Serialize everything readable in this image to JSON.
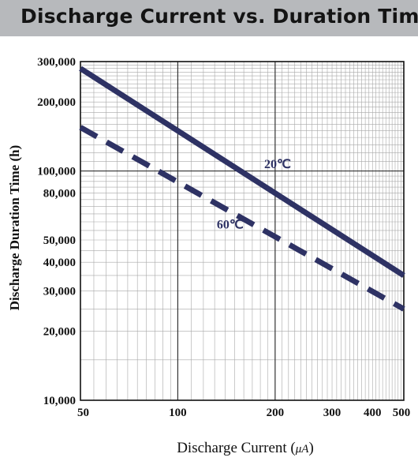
{
  "header": {
    "title": "Discharge Current vs. Duration Time"
  },
  "colors": {
    "header_bg": "#b7b9bc",
    "line": "#2e3264",
    "grid": "#9a9a9a"
  },
  "chart_data": {
    "type": "line",
    "title": "Discharge Current vs. Duration Time",
    "xlabel": "Discharge Current (μA)",
    "xlabel_main": "Discharge Current (",
    "xlabel_unit": "μA",
    "xlabel_close": ")",
    "ylabel": "Discharge Duration Time (h)",
    "xscale": "log",
    "yscale": "log",
    "xlim": [
      50,
      500
    ],
    "ylim": [
      10000,
      300000
    ],
    "grid": true,
    "x_ticks": [
      {
        "value": 50,
        "label": "50"
      },
      {
        "value": 100,
        "label": "100"
      },
      {
        "value": 200,
        "label": "200"
      },
      {
        "value": 300,
        "label": "300"
      },
      {
        "value": 400,
        "label": "400"
      },
      {
        "value": 500,
        "label": "500"
      }
    ],
    "y_ticks": [
      {
        "value": 10000,
        "label": "10,000"
      },
      {
        "value": 20000,
        "label": "20,000"
      },
      {
        "value": 30000,
        "label": "30,000"
      },
      {
        "value": 40000,
        "label": "40,000"
      },
      {
        "value": 50000,
        "label": "50,000"
      },
      {
        "value": 80000,
        "label": "80,000"
      },
      {
        "value": 100000,
        "label": "100,000"
      },
      {
        "value": 200000,
        "label": "200,000"
      },
      {
        "value": 300000,
        "label": "300,000"
      }
    ],
    "series": [
      {
        "name": "20℃",
        "style": "solid",
        "x": [
          50,
          500
        ],
        "y": [
          280000,
          35000
        ]
      },
      {
        "name": "60℃",
        "style": "dashed",
        "x": [
          50,
          500
        ],
        "y": [
          155000,
          25000
        ]
      }
    ],
    "label_anchor": [
      {
        "x": 185,
        "y": 103000
      },
      {
        "x": 132,
        "y": 56000
      }
    ]
  }
}
